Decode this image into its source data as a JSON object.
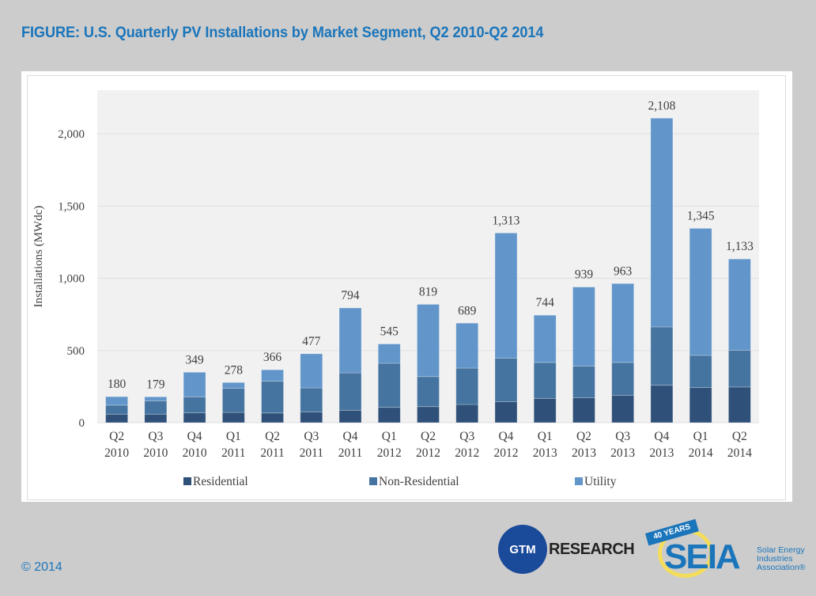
{
  "figure": {
    "title": "FIGURE: U.S. Quarterly PV Installations by Market Segment, Q2 2010-Q2 2014",
    "copyright": "© 2014"
  },
  "logos": {
    "gtm": {
      "badge": "GTM",
      "text": "RESEARCH"
    },
    "seia": {
      "banner": "40 YEARS",
      "word": "SEIA",
      "desc_lines": [
        "Solar Energy",
        "Industries",
        "Association®"
      ]
    }
  },
  "colors": {
    "residential": "#2f5078",
    "non_residential": "#4574a0",
    "utility": "#6295c9",
    "plot_bg": "#f1f1f1",
    "grid": "#e2e2e8",
    "title": "#1a75bb"
  },
  "chart_data": {
    "type": "bar",
    "stacked": true,
    "title": "U.S. Quarterly PV Installations by Market Segment, Q2 2010-Q2 2014",
    "xlabel": "",
    "ylabel": "Installations (MWdc)",
    "ylim": [
      0,
      2300
    ],
    "yticks": [
      0,
      500,
      1000,
      1500,
      2000
    ],
    "ytick_labels": [
      "0",
      "500",
      "1,000",
      "1,500",
      "2,000"
    ],
    "grid": true,
    "legend_position": "bottom",
    "categories": [
      [
        "Q2",
        "2010"
      ],
      [
        "Q3",
        "2010"
      ],
      [
        "Q4",
        "2010"
      ],
      [
        "Q1",
        "2011"
      ],
      [
        "Q2",
        "2011"
      ],
      [
        "Q3",
        "2011"
      ],
      [
        "Q4",
        "2011"
      ],
      [
        "Q1",
        "2012"
      ],
      [
        "Q2",
        "2012"
      ],
      [
        "Q3",
        "2012"
      ],
      [
        "Q4",
        "2012"
      ],
      [
        "Q1",
        "2013"
      ],
      [
        "Q2",
        "2013"
      ],
      [
        "Q3",
        "2013"
      ],
      [
        "Q4",
        "2013"
      ],
      [
        "Q1",
        "2014"
      ],
      [
        "Q2",
        "2014"
      ]
    ],
    "series": [
      {
        "name": "Residential",
        "color_key": "residential",
        "values": [
          59,
          59,
          68,
          71,
          67,
          75,
          86,
          106,
          111,
          126,
          146,
          168,
          173,
          190,
          259,
          243,
          247
        ]
      },
      {
        "name": "Non-Residential",
        "color_key": "non_residential",
        "values": [
          62,
          92,
          111,
          167,
          220,
          166,
          259,
          305,
          208,
          252,
          301,
          249,
          219,
          227,
          404,
          223,
          255
        ]
      },
      {
        "name": "Utility",
        "color_key": "utility",
        "values": [
          59,
          28,
          170,
          40,
          79,
          236,
          449,
          134,
          500,
          311,
          866,
          327,
          547,
          546,
          1445,
          879,
          631
        ]
      }
    ],
    "totals": [
      180,
      179,
      349,
      278,
      366,
      477,
      794,
      545,
      819,
      689,
      1313,
      744,
      939,
      963,
      2108,
      1345,
      1133
    ],
    "total_labels": [
      "180",
      "179",
      "349",
      "278",
      "366",
      "477",
      "794",
      "545",
      "819",
      "689",
      "1,313",
      "744",
      "939",
      "963",
      "2,108",
      "1,345",
      "1,133"
    ]
  }
}
